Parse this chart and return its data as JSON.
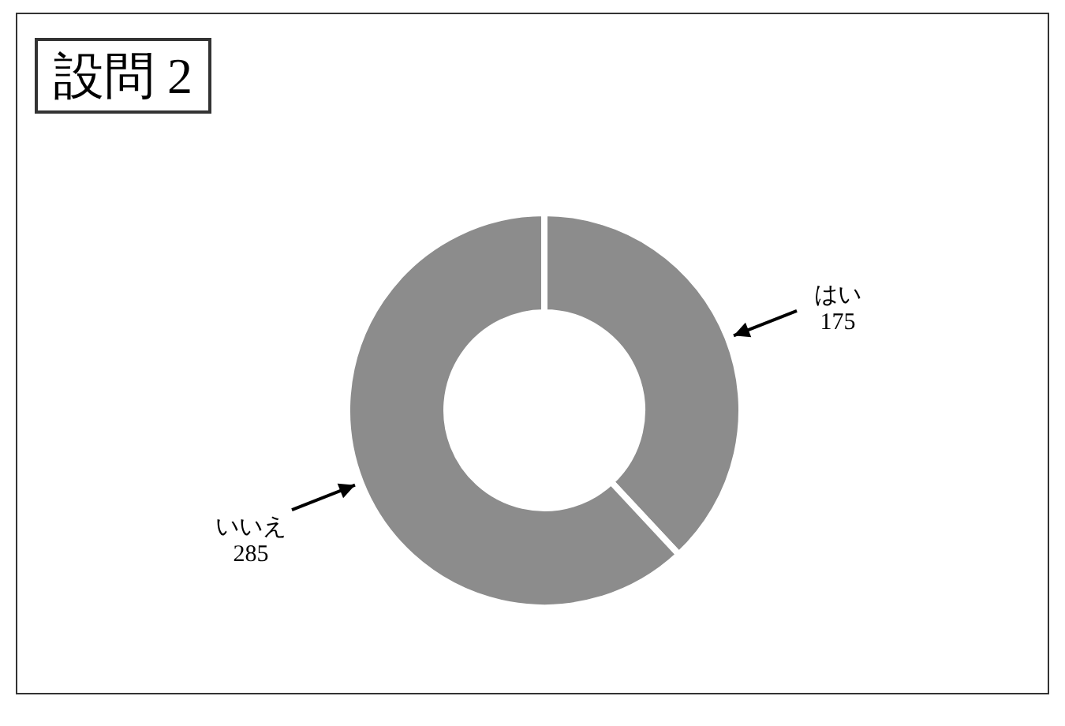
{
  "chart_data": {
    "type": "donut",
    "title": "設問 2",
    "categories": [
      "はい",
      "いいえ"
    ],
    "values": [
      175,
      285
    ],
    "colors": [
      "#8c8c8c",
      "#8c8c8c"
    ],
    "data_labels": true
  }
}
